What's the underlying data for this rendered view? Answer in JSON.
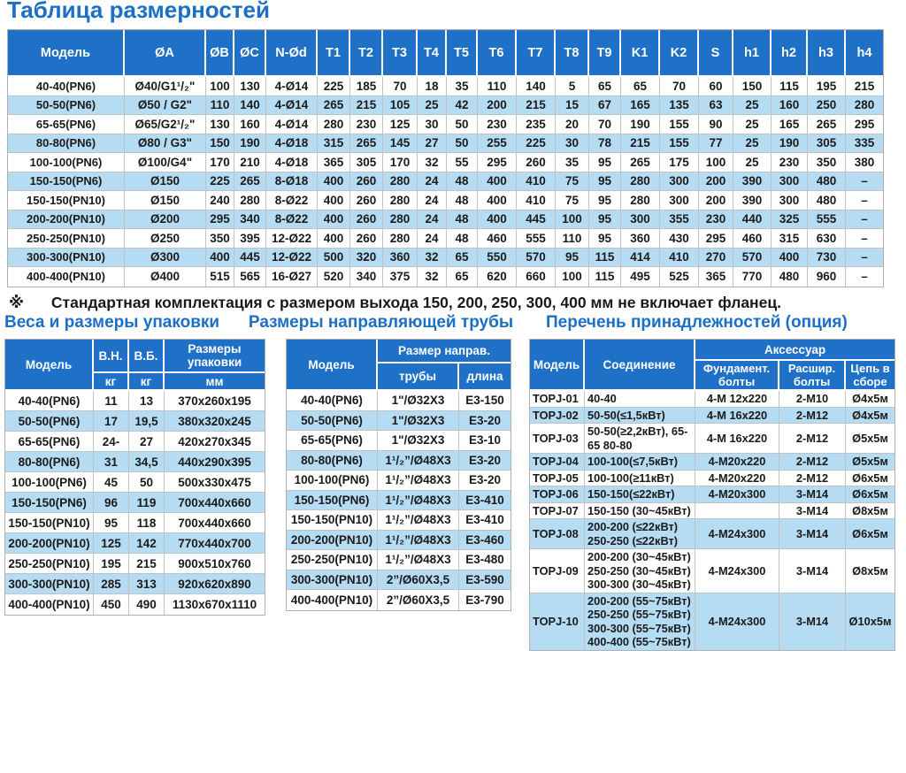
{
  "page": {
    "title": "Таблица размерностей",
    "note_symbol": "※",
    "note": "Стандартная комплектация с размером выхода 150, 200, 250, 300, 400 мм не включает фланец."
  },
  "colors": {
    "accent_blue": "#1B6FC5",
    "header_bg": "#1E71C7",
    "stripe_blue": "#B5DCF2",
    "grid_border": "#C2C2C2",
    "text_dark": "#1A1A1A"
  },
  "main_table": {
    "columns": [
      "Модель",
      "ØA",
      "ØB",
      "ØC",
      "N-Ød",
      "T1",
      "T2",
      "T3",
      "T4",
      "T5",
      "T6",
      "T7",
      "T8",
      "T9",
      "K1",
      "K2",
      "S",
      "h1",
      "h2",
      "h3",
      "h4"
    ],
    "rows": [
      [
        "40-40(PN6)",
        "Ø40/G1¹/₂\"",
        "100",
        "130",
        "4-Ø14",
        "225",
        "185",
        "70",
        "18",
        "35",
        "110",
        "140",
        "5",
        "65",
        "65",
        "70",
        "60",
        "150",
        "115",
        "195",
        "215"
      ],
      [
        "50-50(PN6)",
        "Ø50 / G2\"",
        "110",
        "140",
        "4-Ø14",
        "265",
        "215",
        "105",
        "25",
        "42",
        "200",
        "215",
        "15",
        "67",
        "165",
        "135",
        "63",
        "25",
        "160",
        "250",
        "280"
      ],
      [
        "65-65(PN6)",
        "Ø65/G2¹/₂\"",
        "130",
        "160",
        "4-Ø14",
        "280",
        "230",
        "125",
        "30",
        "50",
        "230",
        "235",
        "20",
        "70",
        "190",
        "155",
        "90",
        "25",
        "165",
        "265",
        "295"
      ],
      [
        "80-80(PN6)",
        "Ø80 / G3\"",
        "150",
        "190",
        "4-Ø18",
        "315",
        "265",
        "145",
        "27",
        "50",
        "255",
        "225",
        "30",
        "78",
        "215",
        "155",
        "77",
        "25",
        "190",
        "305",
        "335"
      ],
      [
        "100-100(PN6)",
        "Ø100/G4\"",
        "170",
        "210",
        "4-Ø18",
        "365",
        "305",
        "170",
        "32",
        "55",
        "295",
        "260",
        "35",
        "95",
        "265",
        "175",
        "100",
        "25",
        "230",
        "350",
        "380"
      ],
      [
        "150-150(PN6)",
        "Ø150",
        "225",
        "265",
        "8-Ø18",
        "400",
        "260",
        "280",
        "24",
        "48",
        "400",
        "410",
        "75",
        "95",
        "280",
        "300",
        "200",
        "390",
        "300",
        "480",
        "–"
      ],
      [
        "150-150(PN10)",
        "Ø150",
        "240",
        "280",
        "8-Ø22",
        "400",
        "260",
        "280",
        "24",
        "48",
        "400",
        "410",
        "75",
        "95",
        "280",
        "300",
        "200",
        "390",
        "300",
        "480",
        "–"
      ],
      [
        "200-200(PN10)",
        "Ø200",
        "295",
        "340",
        "8-Ø22",
        "400",
        "260",
        "280",
        "24",
        "48",
        "400",
        "445",
        "100",
        "95",
        "300",
        "355",
        "230",
        "440",
        "325",
        "555",
        "–"
      ],
      [
        "250-250(PN10)",
        "Ø250",
        "350",
        "395",
        "12-Ø22",
        "400",
        "260",
        "280",
        "24",
        "48",
        "460",
        "555",
        "110",
        "95",
        "360",
        "430",
        "295",
        "460",
        "315",
        "630",
        "–"
      ],
      [
        "300-300(PN10)",
        "Ø300",
        "400",
        "445",
        "12-Ø22",
        "500",
        "320",
        "360",
        "32",
        "65",
        "550",
        "570",
        "95",
        "115",
        "414",
        "410",
        "270",
        "570",
        "400",
        "730",
        "–"
      ],
      [
        "400-400(PN10)",
        "Ø400",
        "515",
        "565",
        "16-Ø27",
        "520",
        "340",
        "375",
        "32",
        "65",
        "620",
        "660",
        "100",
        "115",
        "495",
        "525",
        "365",
        "770",
        "480",
        "960",
        "–"
      ]
    ]
  },
  "packing_table": {
    "title": "Веса и размеры упаковки",
    "header": {
      "model": "Модель",
      "col1": "В.Н.",
      "col2": "В.Б.",
      "col3": "Размеры упаковки",
      "unit1": "кг",
      "unit2": "кг",
      "unit3": "мм"
    },
    "rows": [
      [
        "40-40(PN6)",
        "11",
        "13",
        "370x260x195"
      ],
      [
        "50-50(PN6)",
        "17",
        "19,5",
        "380x320x245"
      ],
      [
        "65-65(PN6)",
        "24-",
        "27",
        "420x270x345"
      ],
      [
        "80-80(PN6)",
        "31",
        "34,5",
        "440x290x395"
      ],
      [
        "100-100(PN6)",
        "45",
        "50",
        "500x330x475"
      ],
      [
        "150-150(PN6)",
        "96",
        "119",
        "700x440x660"
      ],
      [
        "150-150(PN10)",
        "95",
        "118",
        "700x440x660"
      ],
      [
        "200-200(PN10)",
        "125",
        "142",
        "770x440x700"
      ],
      [
        "250-250(PN10)",
        "195",
        "215",
        "900x510x760"
      ],
      [
        "300-300(PN10)",
        "285",
        "313",
        "920x620x890"
      ],
      [
        "400-400(PN10)",
        "450",
        "490",
        "1130x670x1110"
      ]
    ]
  },
  "pipe_table": {
    "title": "Размеры направляющей трубы",
    "header": {
      "model": "Модель",
      "group": "Размер направ.",
      "col1": "трубы",
      "col2": "длина"
    },
    "rows": [
      [
        "40-40(PN6)",
        "1\"/Ø32X3",
        "E3-150"
      ],
      [
        "50-50(PN6)",
        "1\"/Ø32X3",
        "E3-20"
      ],
      [
        "65-65(PN6)",
        "1\"/Ø32X3",
        "E3-10"
      ],
      [
        "80-80(PN6)",
        "1¹/₂”/Ø48X3",
        "E3-20"
      ],
      [
        "100-100(PN6)",
        "1¹/₂”/Ø48X3",
        "E3-20"
      ],
      [
        "150-150(PN6)",
        "1¹/₂”/Ø48X3",
        "E3-410"
      ],
      [
        "150-150(PN10)",
        "1¹/₂”/Ø48X3",
        "E3-410"
      ],
      [
        "200-200(PN10)",
        "1¹/₂”/Ø48X3",
        "E3-460"
      ],
      [
        "250-250(PN10)",
        "1¹/₂”/Ø48X3",
        "E3-480"
      ],
      [
        "300-300(PN10)",
        "2”/Ø60X3,5",
        "E3-590"
      ],
      [
        "400-400(PN10)",
        "2”/Ø60X3,5",
        "E3-790"
      ]
    ]
  },
  "accessories_table": {
    "title": "Перечень принадлежностей (опция)",
    "header": {
      "model": "Модель",
      "connection": "Соединение",
      "group": "Аксессуар",
      "col1": "Фундамент. болты",
      "col2": "Расшир. болты",
      "col3": "Цепь в сборе"
    },
    "rows": [
      [
        "TOPJ-01",
        "40-40",
        "4-M 12x220",
        "2-M10",
        "Ø4x5м"
      ],
      [
        "TOPJ-02",
        "50-50(≤1,5кВт)",
        "4-M 16x220",
        "2-M12",
        "Ø4x5м"
      ],
      [
        "TOPJ-03",
        "50-50(≥2,2кВт), 65-65 80-80",
        "4-M 16x220",
        "2-M12",
        "Ø5x5м"
      ],
      [
        "TOPJ-04",
        "100-100(≤7,5кВт)",
        "4-M20x220",
        "2-M12",
        "Ø5x5м"
      ],
      [
        "TOPJ-05",
        "100-100(≥11кВт)",
        "4-M20x220",
        "2-M12",
        "Ø6x5м"
      ],
      [
        "TOPJ-06",
        "150-150(≤22кВт)",
        "4-M20x300",
        "3-M14",
        "Ø6x5м"
      ],
      [
        "TOPJ-07",
        "150-150 (30~45кВт)",
        "",
        "3-M14",
        "Ø8x5м"
      ],
      [
        "TOPJ-08",
        "200-200 (≤22кВт) 250-250 (≤22кВт)",
        "4-M24x300",
        "3-M14",
        "Ø6x5м"
      ],
      [
        "TOPJ-09",
        "200-200 (30~45кВт) 250-250 (30~45кВт) 300-300 (30~45кВт)",
        "4-M24x300",
        "3-M14",
        "Ø8x5м"
      ],
      [
        "TOPJ-10",
        "200-200 (55~75кВт) 250-250 (55~75кВт) 300-300 (55~75кВт) 400-400 (55~75кВт)",
        "4-M24x300",
        "3-M14",
        "Ø10x5м"
      ]
    ]
  }
}
